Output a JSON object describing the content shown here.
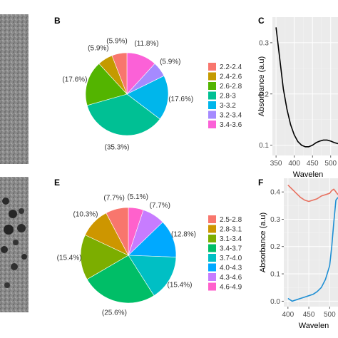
{
  "panels": {
    "B": "B",
    "C": "C",
    "E": "E",
    "F": "F"
  },
  "chart_data": [
    {
      "panel": "B",
      "type": "pie",
      "categories": [
        "2.2-2.4",
        "2.4-2.6",
        "2.6-2.8",
        "2.8-3",
        "3-3.2",
        "3.2-3.4",
        "3.4-3.6"
      ],
      "values": [
        5.9,
        5.9,
        17.6,
        35.3,
        17.6,
        5.9,
        11.8
      ],
      "labels": [
        "(5.9%)",
        "(5.9%)",
        "(17.6%)",
        "(35.3%)",
        "(17.6%)",
        "(5.9%)",
        "(11.8%)"
      ],
      "slice_order_clockwise_from_top": [
        "3.4-3.6",
        "3.2-3.4",
        "3-3.2",
        "2.8-3",
        "2.6-2.8",
        "2.4-2.6",
        "2.2-2.4"
      ],
      "colors": [
        "#F8766D",
        "#C49A00",
        "#53B400",
        "#00C094",
        "#00B6EB",
        "#A58AFF",
        "#FB61D7"
      ],
      "legend_placement": "right"
    },
    {
      "panel": "C",
      "type": "line",
      "ylabel": "Absorbance (a.u)",
      "xlabel": "Wavelen",
      "xticks": [
        "350",
        "400",
        "450",
        "500"
      ],
      "yticks": [
        "0.1",
        "0.2",
        "0.3"
      ],
      "xlim": [
        340,
        520
      ],
      "ylim": [
        0.08,
        0.35
      ],
      "series": [
        {
          "color": "#000000",
          "x": [
            350,
            360,
            370,
            380,
            390,
            400,
            410,
            420,
            430,
            440,
            450,
            460,
            470,
            480,
            490,
            500,
            510,
            520
          ],
          "y": [
            0.33,
            0.27,
            0.21,
            0.17,
            0.14,
            0.12,
            0.107,
            0.1,
            0.097,
            0.097,
            0.1,
            0.105,
            0.108,
            0.11,
            0.11,
            0.108,
            0.105,
            0.103
          ]
        }
      ],
      "grid": true
    },
    {
      "panel": "E",
      "type": "pie",
      "categories": [
        "2.5-2.8",
        "2.8-3.1",
        "3.1-3.4",
        "3.4-3.7",
        "3.7-4.0",
        "4.0-4.3",
        "4.3-4.6",
        "4.6-4.9"
      ],
      "values": [
        7.7,
        10.3,
        15.4,
        25.6,
        15.4,
        12.8,
        7.7,
        5.1
      ],
      "labels": [
        "(7.7%)",
        "(10.3%)",
        "(15.4%)",
        "(25.6%)",
        "(15.4%)",
        "(12.8%)",
        "(7.7%)",
        "(5.1%)"
      ],
      "slice_order_clockwise_from_top": [
        "4.6-4.9",
        "4.3-4.6",
        "4.0-4.3",
        "3.7-4.0",
        "3.4-3.7",
        "3.1-3.4",
        "2.8-3.1",
        "2.5-2.8"
      ],
      "colors": [
        "#F8766D",
        "#CD9600",
        "#7CAE00",
        "#00BE67",
        "#00BFC4",
        "#00A9FF",
        "#C77CFF",
        "#FF61CC"
      ],
      "legend_placement": "right"
    },
    {
      "panel": "F",
      "type": "line",
      "ylabel": "Absorbance (a.u)",
      "xlabel": "Wavelen",
      "xticks": [
        "400",
        "450",
        "500"
      ],
      "yticks": [
        "0.0",
        "0.1",
        "0.2",
        "0.3",
        "0.4"
      ],
      "xlim": [
        390,
        520
      ],
      "ylim": [
        -0.02,
        0.45
      ],
      "series": [
        {
          "color": "#E8705F",
          "x": [
            400,
            410,
            420,
            430,
            440,
            450,
            460,
            470,
            480,
            490,
            500,
            505,
            510,
            515,
            520
          ],
          "y": [
            0.425,
            0.41,
            0.395,
            0.38,
            0.37,
            0.365,
            0.37,
            0.375,
            0.385,
            0.39,
            0.395,
            0.405,
            0.41,
            0.4,
            0.39
          ]
        },
        {
          "color": "#1F8FD4",
          "x": [
            400,
            410,
            420,
            430,
            440,
            450,
            460,
            470,
            480,
            490,
            500,
            505,
            510,
            515,
            520
          ],
          "y": [
            0.01,
            0.0,
            0.005,
            0.01,
            0.015,
            0.02,
            0.025,
            0.035,
            0.05,
            0.08,
            0.13,
            0.2,
            0.29,
            0.37,
            0.38
          ]
        }
      ],
      "grid": true
    }
  ]
}
